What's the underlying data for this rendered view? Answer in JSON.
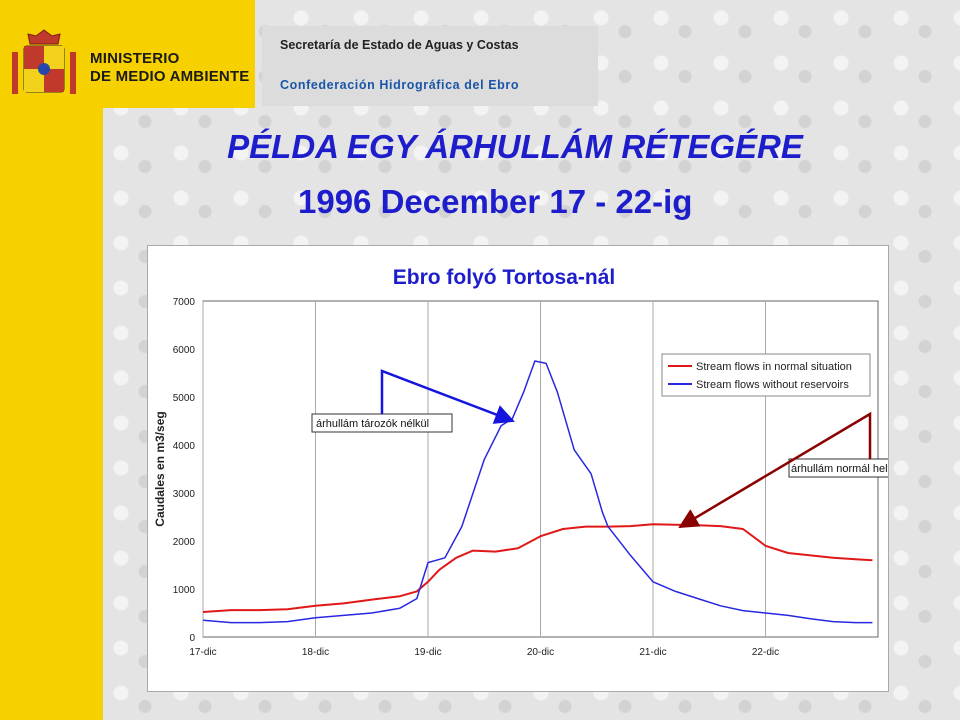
{
  "header": {
    "ministry_line1": "MINISTERIO",
    "ministry_line2": "DE MEDIO AMBIENTE",
    "secretaria": "Secretaría de Estado de Aguas y Costas",
    "confederacion": "Confederación Hidrográfica del Ebro"
  },
  "slide": {
    "title": "PÉLDA EGY ÁRHULLÁM RÉTEGÉRE",
    "subtitle": "1996 December 17 - 22-ig"
  },
  "colors": {
    "normal": "#e01818",
    "no_reservoirs": "#2828e0",
    "annotation_blue": "#1515e0",
    "annotation_red": "#8b0000",
    "title": "#1d1dcc"
  },
  "chart_data": {
    "type": "line",
    "title": "Ebro folyó Tortosa-nál",
    "ylabel": "Caudales en m3/seg",
    "xlabel": "",
    "ylim": [
      0,
      7000
    ],
    "xlim": [
      0,
      6
    ],
    "y_ticks": [
      0,
      1000,
      2000,
      3000,
      4000,
      5000,
      6000,
      7000
    ],
    "x_ticks": [
      {
        "x": 0,
        "label": "17-dic"
      },
      {
        "x": 1,
        "label": "18-dic"
      },
      {
        "x": 2,
        "label": "19-dic"
      },
      {
        "x": 3,
        "label": "20-dic"
      },
      {
        "x": 4,
        "label": "21-dic"
      },
      {
        "x": 5,
        "label": "22-dic"
      }
    ],
    "grid": true,
    "legend_position": "top-right",
    "series": [
      {
        "name": "Stream flows in normal situation",
        "color": "#e01818",
        "points": [
          [
            0,
            520
          ],
          [
            0.25,
            560
          ],
          [
            0.5,
            560
          ],
          [
            0.75,
            580
          ],
          [
            1,
            650
          ],
          [
            1.25,
            700
          ],
          [
            1.5,
            780
          ],
          [
            1.75,
            850
          ],
          [
            1.9,
            950
          ],
          [
            2,
            1150
          ],
          [
            2.1,
            1400
          ],
          [
            2.25,
            1650
          ],
          [
            2.4,
            1800
          ],
          [
            2.6,
            1780
          ],
          [
            2.8,
            1850
          ],
          [
            3,
            2100
          ],
          [
            3.2,
            2250
          ],
          [
            3.4,
            2300
          ],
          [
            3.6,
            2300
          ],
          [
            3.8,
            2310
          ],
          [
            4,
            2350
          ],
          [
            4.2,
            2340
          ],
          [
            4.4,
            2330
          ],
          [
            4.6,
            2310
          ],
          [
            4.8,
            2250
          ],
          [
            5,
            1900
          ],
          [
            5.2,
            1750
          ],
          [
            5.4,
            1700
          ],
          [
            5.6,
            1650
          ],
          [
            5.8,
            1620
          ],
          [
            5.95,
            1600
          ]
        ]
      },
      {
        "name": "Stream flows without reservoirs",
        "color": "#2828e0",
        "points": [
          [
            0,
            350
          ],
          [
            0.25,
            300
          ],
          [
            0.5,
            300
          ],
          [
            0.75,
            320
          ],
          [
            1,
            400
          ],
          [
            1.25,
            450
          ],
          [
            1.5,
            500
          ],
          [
            1.75,
            600
          ],
          [
            1.9,
            800
          ],
          [
            2,
            1550
          ],
          [
            2.15,
            1650
          ],
          [
            2.3,
            2300
          ],
          [
            2.5,
            3700
          ],
          [
            2.65,
            4400
          ],
          [
            2.75,
            4550
          ],
          [
            2.85,
            5100
          ],
          [
            2.95,
            5750
          ],
          [
            3.05,
            5700
          ],
          [
            3.15,
            5100
          ],
          [
            3.3,
            3900
          ],
          [
            3.45,
            3400
          ],
          [
            3.55,
            2600
          ],
          [
            3.6,
            2300
          ],
          [
            3.8,
            1700
          ],
          [
            4,
            1150
          ],
          [
            4.2,
            950
          ],
          [
            4.4,
            800
          ],
          [
            4.6,
            650
          ],
          [
            4.8,
            550
          ],
          [
            5,
            500
          ],
          [
            5.2,
            450
          ],
          [
            5.4,
            380
          ],
          [
            5.6,
            320
          ],
          [
            5.8,
            300
          ],
          [
            5.95,
            300
          ]
        ]
      }
    ],
    "annotations": [
      {
        "text": "árhullám tározók nélkül"
      },
      {
        "text": "árhullám normál helyzetben"
      }
    ]
  }
}
